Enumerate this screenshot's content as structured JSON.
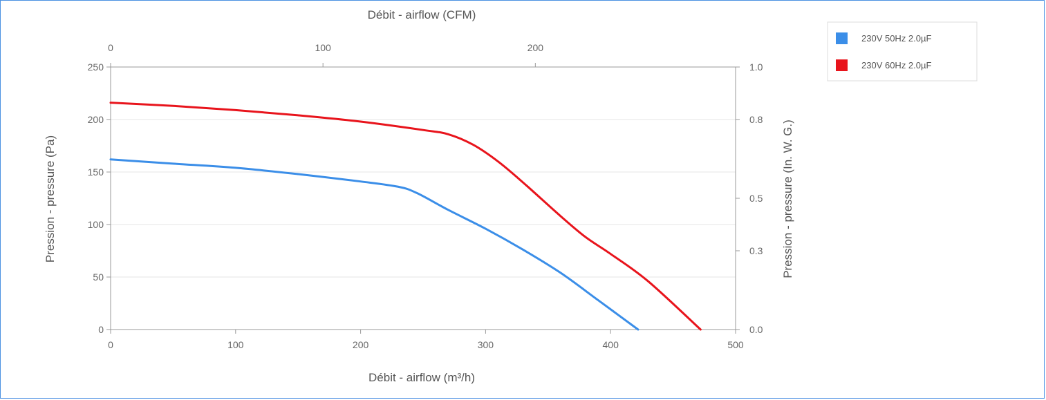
{
  "chart_data": {
    "type": "line",
    "xlabel": "Débit - airflow (m³/h)",
    "x2label": "Débit - airflow (CFM)",
    "ylabel": "Pression - pressure (Pa)",
    "y2label": "Pression - pressure (In. W. G.)",
    "xlim": [
      0,
      500
    ],
    "ylim": [
      0,
      250
    ],
    "x2lim": [
      0,
      294.3
    ],
    "y2lim": [
      0,
      1.0
    ],
    "xticks": [
      "0",
      "100",
      "200",
      "300",
      "400",
      "500"
    ],
    "yticks": [
      "0",
      "50",
      "100",
      "150",
      "200",
      "250"
    ],
    "x2ticks": [
      "0",
      "100",
      "200"
    ],
    "y2ticks": [
      "0.0",
      "0.3",
      "0.5",
      "0.8",
      "1.0"
    ],
    "grid": true,
    "legend_position": "top-right",
    "series": [
      {
        "name": "230V 50Hz 2.0µF",
        "color": "#3b8ee8",
        "x": [
          0,
          50,
          100,
          150,
          200,
          230,
          245,
          270,
          300,
          330,
          360,
          390,
          422
        ],
        "y": [
          162,
          158,
          154,
          148,
          141,
          136,
          130,
          114,
          96,
          76,
          54,
          28,
          0
        ]
      },
      {
        "name": "230V 60Hz 2.0µF",
        "color": "#e8141c",
        "x": [
          0,
          50,
          100,
          150,
          200,
          250,
          270,
          290,
          310,
          330,
          360,
          380,
          400,
          430,
          472
        ],
        "y": [
          216,
          213,
          209,
          204,
          198,
          190,
          186,
          176,
          160,
          140,
          108,
          88,
          72,
          46,
          0
        ]
      }
    ]
  }
}
